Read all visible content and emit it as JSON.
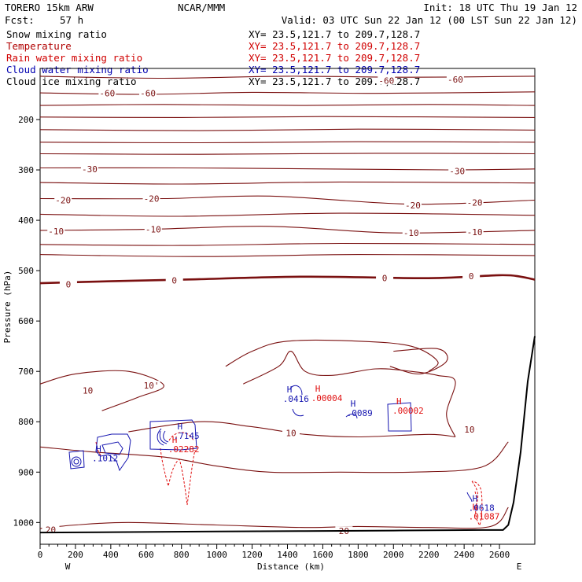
{
  "header": {
    "model": "TORERO  15km ARW",
    "org": "NCAR/MMM",
    "init": "Init: 18 UTC Thu 19 Jan 12",
    "fcst_label": "Fcst:",
    "fcst_value": "57 h",
    "valid": "Valid: 03 UTC Sun 22 Jan 12 (00 LST Sun 22 Jan 12)"
  },
  "legend": [
    {
      "name": "Snow mixing ratio",
      "color": "#000000",
      "xy": "XY=  23.5,121.7 to 209.7,128.7",
      "xy_color": "#000000"
    },
    {
      "name": "Temperature",
      "color": "#b00000",
      "xy": "XY=  23.5,121.7 to 209.7,128.7",
      "xy_color": "#d00000"
    },
    {
      "name": "Rain water mixing ratio",
      "color": "#d00000",
      "xy": "XY=  23.5,121.7 to 209.7,128.7",
      "xy_color": "#d00000"
    },
    {
      "name": "Cloud water mixing ratio",
      "color": "#0000b0",
      "xy": "XY=  23.5,121.7 to 209.7,128.7",
      "xy_color": "#0000b0"
    },
    {
      "name": "Cloud ice mixing ratio",
      "color": "#000000",
      "xy": "XY=  23.5,121.7 to 209.7,128.7",
      "xy_color": "#000000"
    }
  ],
  "colors": {
    "temperature": "#7a1010",
    "rain": "#e01010",
    "cloud_water": "#1515b0",
    "terrain": "#000000"
  },
  "chart_data": {
    "type": "contour-cross-section",
    "xlabel": "Distance (km)",
    "ylabel": "Pressure (hPa)",
    "xlim": [
      0,
      2800
    ],
    "ylim": [
      1050,
      100
    ],
    "x_ticks": [
      "0",
      "200",
      "400",
      "600",
      "800",
      "1000",
      "1200",
      "1400",
      "1600",
      "1800",
      "2000",
      "2200",
      "2400",
      "2600"
    ],
    "y_ticks": [
      "200",
      "300",
      "400",
      "500",
      "600",
      "700",
      "800",
      "900",
      "1000"
    ],
    "left_end": "W",
    "right_end": "E",
    "temperature_isotherms": [
      {
        "level": -60,
        "points": [
          [
            0,
            114
          ],
          [
            700,
            118
          ],
          [
            1400,
            114
          ],
          [
            2100,
            116
          ],
          [
            2800,
            114
          ]
        ],
        "labels": [
          {
            "text": "-60",
            "x": 1960,
            "y": 123
          },
          {
            "text": "-60",
            "x": 2350,
            "y": 120
          }
        ]
      },
      {
        "level": -60,
        "points": [
          [
            0,
            147
          ],
          [
            600,
            150
          ],
          [
            1200,
            146
          ],
          [
            1900,
            148
          ],
          [
            2800,
            145
          ]
        ],
        "labels": [
          {
            "text": "-60",
            "x": 380,
            "y": 148
          },
          {
            "text": "-60",
            "x": 610,
            "y": 148
          }
        ]
      },
      {
        "level": -55,
        "points": [
          [
            0,
            172
          ],
          [
            700,
            170
          ],
          [
            1500,
            172
          ],
          [
            2200,
            170
          ],
          [
            2800,
            172
          ]
        ],
        "labels": []
      },
      {
        "level": -50,
        "points": [
          [
            0,
            195
          ],
          [
            800,
            196
          ],
          [
            1600,
            194
          ],
          [
            2800,
            196
          ]
        ],
        "labels": []
      },
      {
        "level": -45,
        "points": [
          [
            0,
            220
          ],
          [
            900,
            222
          ],
          [
            1800,
            219
          ],
          [
            2800,
            221
          ]
        ],
        "labels": []
      },
      {
        "level": -40,
        "points": [
          [
            0,
            245
          ],
          [
            900,
            246
          ],
          [
            1800,
            244
          ],
          [
            2800,
            245
          ]
        ],
        "labels": []
      },
      {
        "level": -35,
        "points": [
          [
            0,
            268
          ],
          [
            900,
            269
          ],
          [
            1900,
            267
          ],
          [
            2800,
            268
          ]
        ],
        "labels": []
      },
      {
        "level": -30,
        "points": [
          [
            0,
            296
          ],
          [
            800,
            296
          ],
          [
            1600,
            298
          ],
          [
            2300,
            300
          ],
          [
            2800,
            298
          ]
        ],
        "labels": [
          {
            "text": "-30",
            "x": 280,
            "y": 298
          },
          {
            "text": "-30",
            "x": 2360,
            "y": 302
          }
        ]
      },
      {
        "level": -25,
        "points": [
          [
            0,
            325
          ],
          [
            800,
            328
          ],
          [
            1700,
            324
          ],
          [
            2800,
            326
          ]
        ],
        "labels": []
      },
      {
        "level": -20,
        "points": [
          [
            0,
            357
          ],
          [
            700,
            357
          ],
          [
            1300,
            352
          ],
          [
            2100,
            368
          ],
          [
            2800,
            360
          ]
        ],
        "labels": [
          {
            "text": "-20",
            "x": 130,
            "y": 360
          },
          {
            "text": "-20",
            "x": 630,
            "y": 357
          },
          {
            "text": "-20",
            "x": 2110,
            "y": 370
          },
          {
            "text": "-20",
            "x": 2460,
            "y": 365
          }
        ]
      },
      {
        "level": -15,
        "points": [
          [
            0,
            388
          ],
          [
            800,
            392
          ],
          [
            1700,
            386
          ],
          [
            2800,
            390
          ]
        ],
        "labels": []
      },
      {
        "level": -10,
        "points": [
          [
            0,
            420
          ],
          [
            600,
            418
          ],
          [
            1300,
            412
          ],
          [
            2000,
            425
          ],
          [
            2800,
            420
          ]
        ],
        "labels": [
          {
            "text": "-10",
            "x": 90,
            "y": 422
          },
          {
            "text": "-10",
            "x": 640,
            "y": 418
          },
          {
            "text": "-10",
            "x": 2100,
            "y": 425
          },
          {
            "text": "-10",
            "x": 2460,
            "y": 423
          }
        ]
      },
      {
        "level": -5,
        "points": [
          [
            0,
            448
          ],
          [
            800,
            450
          ],
          [
            1700,
            446
          ],
          [
            2800,
            448
          ]
        ],
        "labels": []
      },
      {
        "level": -5,
        "points": [
          [
            0,
            468
          ],
          [
            900,
            472
          ],
          [
            1800,
            468
          ],
          [
            2800,
            470
          ]
        ],
        "labels": []
      },
      {
        "level": 0,
        "points": [
          [
            0,
            525
          ],
          [
            400,
            521
          ],
          [
            800,
            518
          ],
          [
            1500,
            512
          ],
          [
            2200,
            515
          ],
          [
            2600,
            509
          ],
          [
            2720,
            512
          ],
          [
            2800,
            518
          ]
        ],
        "labels": [
          {
            "text": "0",
            "x": 160,
            "y": 527
          },
          {
            "text": "0",
            "x": 760,
            "y": 519
          },
          {
            "text": "0",
            "x": 1950,
            "y": 515
          },
          {
            "text": "0",
            "x": 2440,
            "y": 511
          }
        ]
      },
      {
        "level": 5,
        "points": [
          [
            1050,
            690
          ],
          [
            1200,
            660
          ],
          [
            1400,
            640
          ],
          [
            1800,
            640
          ],
          [
            2100,
            650
          ],
          [
            2250,
            680
          ],
          [
            2200,
            700
          ]
        ],
        "labels": []
      },
      {
        "level": 5,
        "points": [
          [
            2000,
            660
          ],
          [
            2250,
            655
          ],
          [
            2300,
            680
          ],
          [
            2150,
            705
          ],
          [
            1980,
            690
          ]
        ],
        "labels": []
      },
      {
        "level": 10,
        "points": [
          [
            0,
            725
          ],
          [
            200,
            705
          ],
          [
            500,
            700
          ],
          [
            700,
            728
          ],
          [
            550,
            752
          ],
          [
            350,
            778
          ]
        ],
        "labels": [
          {
            "text": "10'",
            "x": 630,
            "y": 728
          },
          {
            "text": "10",
            "x": 270,
            "y": 738
          }
        ]
      },
      {
        "level": 10,
        "points": [
          [
            1150,
            725
          ],
          [
            1350,
            690
          ],
          [
            1420,
            660
          ],
          [
            1500,
            700
          ],
          [
            1650,
            708
          ],
          [
            1900,
            695
          ],
          [
            2100,
            700
          ],
          [
            2250,
            708
          ],
          [
            2350,
            720
          ],
          [
            2300,
            785
          ],
          [
            2350,
            830
          ]
        ],
        "labels": [
          {
            "text": "10",
            "x": 2430,
            "y": 815
          }
        ]
      },
      {
        "level": 10,
        "points": [
          [
            500,
            820
          ],
          [
            900,
            800
          ],
          [
            1200,
            810
          ],
          [
            1500,
            825
          ],
          [
            1800,
            830
          ],
          [
            2200,
            825
          ],
          [
            2350,
            830
          ]
        ],
        "labels": [
          {
            "text": "10",
            "x": 1420,
            "y": 822
          }
        ]
      },
      {
        "level": 15,
        "points": [
          [
            0,
            850
          ],
          [
            300,
            860
          ],
          [
            700,
            870
          ],
          [
            1000,
            888
          ],
          [
            1300,
            900
          ],
          [
            1700,
            900
          ],
          [
            2100,
            900
          ],
          [
            2500,
            890
          ],
          [
            2650,
            840
          ]
        ],
        "labels": []
      },
      {
        "level": 20,
        "points": [
          [
            0,
            1012
          ],
          [
            200,
            1005
          ],
          [
            500,
            1000
          ],
          [
            1000,
            1005
          ],
          [
            1500,
            1010
          ],
          [
            1800,
            1008
          ],
          [
            2200,
            1010
          ],
          [
            2550,
            1008
          ],
          [
            2650,
            970
          ]
        ],
        "labels": [
          {
            "text": "20",
            "x": 60,
            "y": 1014
          },
          {
            "text": "20",
            "x": 1720,
            "y": 1017
          }
        ]
      }
    ],
    "maxima_labels": [
      {
        "field": "rain",
        "marker": "H",
        "value": ".00004",
        "x": 1570,
        "y": 740
      },
      {
        "field": "rain",
        "marker": "H",
        "value": ".00002",
        "x": 2030,
        "y": 765
      },
      {
        "field": "rain",
        "marker": "H",
        "value": ".02282",
        "x": 760,
        "y": 842
      },
      {
        "field": "rain",
        "marker": "H",
        "value": ".01087",
        "x": 2460,
        "y": 975
      },
      {
        "field": "cloud_water",
        "marker": "H",
        "value": ".0416",
        "x": 1410,
        "y": 742
      },
      {
        "field": "cloud_water",
        "marker": "H",
        "value": ".0089",
        "x": 1770,
        "y": 770
      },
      {
        "field": "cloud_water",
        "marker": "H",
        "value": ".7145",
        "x": 790,
        "y": 815
      },
      {
        "field": "cloud_water",
        "marker": "H",
        "value": ".0618",
        "x": 2460,
        "y": 958
      },
      {
        "field": "cloud_water",
        "marker": "H",
        "value": ".1012",
        "x": 330,
        "y": 860
      }
    ],
    "terrain": [
      [
        0,
        1020
      ],
      [
        500,
        1019
      ],
      [
        1000,
        1018
      ],
      [
        1500,
        1017
      ],
      [
        2000,
        1016
      ],
      [
        2500,
        1015
      ],
      [
        2620,
        1015
      ],
      [
        2650,
        1005
      ],
      [
        2680,
        960
      ],
      [
        2720,
        860
      ],
      [
        2760,
        720
      ],
      [
        2800,
        630
      ]
    ]
  }
}
